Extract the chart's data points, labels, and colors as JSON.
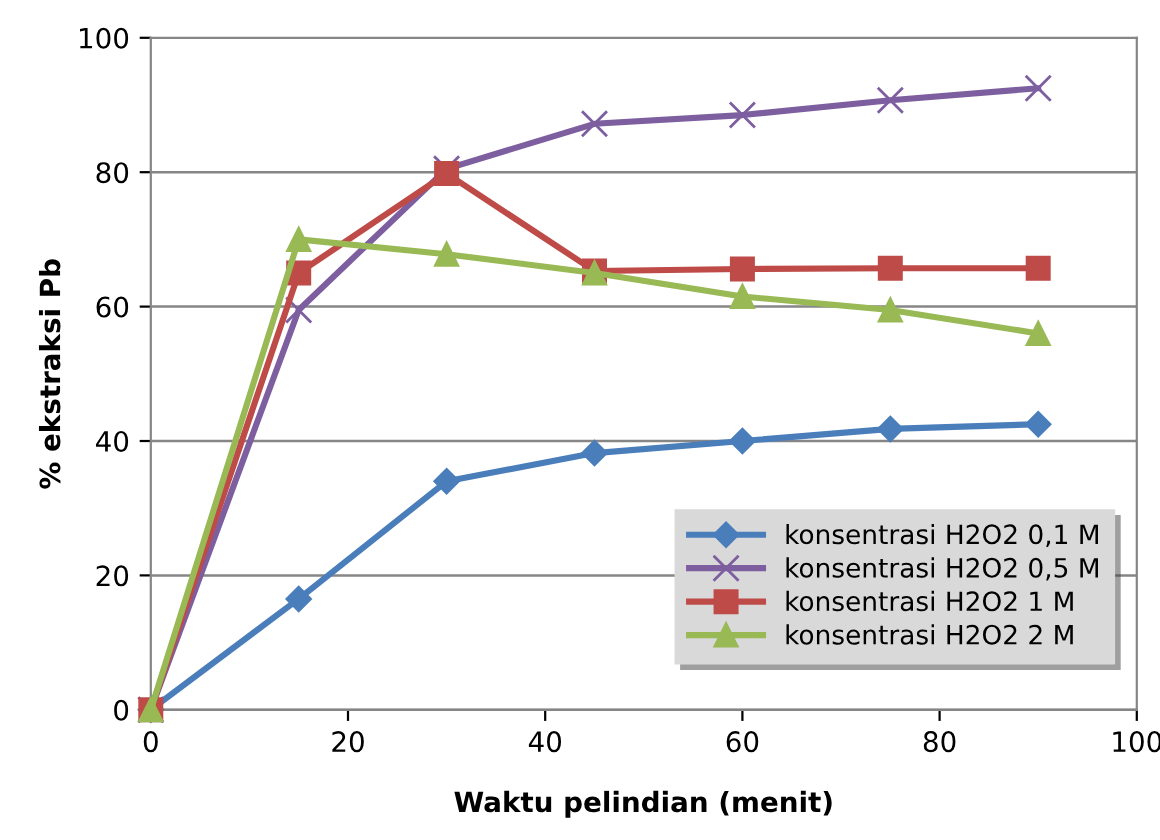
{
  "chart_data": {
    "type": "line",
    "xlabel": "Waktu pelindian (menit)",
    "ylabel": "% ekstraksi Pb",
    "x": [
      0,
      15,
      30,
      45,
      60,
      75,
      90
    ],
    "series": [
      {
        "name": "konsentrasi H2O2 0,1 M",
        "color": "#4a7ebb",
        "marker": "diamond",
        "values": [
          0,
          16.5,
          34,
          38.2,
          40,
          41.8,
          42.5
        ]
      },
      {
        "name": "konsentrasi H2O2 0,5 M",
        "color": "#7d5fa0",
        "marker": "cross",
        "values": [
          0,
          59.5,
          80.5,
          87.2,
          88.5,
          90.7,
          92.5
        ]
      },
      {
        "name": "konsentrasi H2O2 1 M",
        "color": "#be4b48",
        "marker": "square",
        "values": [
          0,
          65,
          79.8,
          65.3,
          65.6,
          65.7,
          65.7
        ]
      },
      {
        "name": "konsentrasi H2O2 2 M",
        "color": "#98b954",
        "marker": "triangle",
        "values": [
          0,
          70,
          67.8,
          65,
          61.5,
          59.5,
          56
        ]
      }
    ],
    "xlim": [
      0,
      100
    ],
    "xticks": [
      0,
      20,
      40,
      60,
      80,
      100
    ],
    "ylim": [
      0,
      100
    ],
    "yticks": [
      0,
      20,
      40,
      60,
      80,
      100
    ],
    "grid": "y",
    "legend": "bottom right",
    "line_style": "solid"
  }
}
